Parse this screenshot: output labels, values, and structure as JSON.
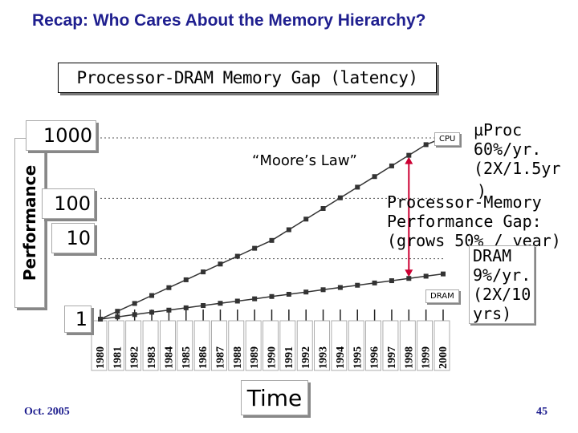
{
  "slide": {
    "title": "Recap: Who Cares About the Memory Hierarchy?",
    "footer_date": "Oct. 2005",
    "page_number": "45"
  },
  "chart_data": {
    "type": "line",
    "title": "Processor-DRAM Memory Gap (latency)",
    "xlabel": "Time",
    "ylabel": "Performance",
    "y_scale": "log",
    "ylim": [
      1,
      1000
    ],
    "y_ticks": [
      "1000",
      "100",
      "10",
      "1"
    ],
    "y_tick_values": [
      1000,
      100,
      10,
      1
    ],
    "categories": [
      "1980",
      "1981",
      "1982",
      "1983",
      "1984",
      "1985",
      "1986",
      "1987",
      "1988",
      "1989",
      "1990",
      "1991",
      "1992",
      "1993",
      "1994",
      "1995",
      "1996",
      "1997",
      "1998",
      "1999",
      "2000"
    ],
    "series": [
      {
        "name": "CPU",
        "color": "#333333",
        "values": [
          1,
          1.35,
          1.82,
          2.46,
          3.32,
          4.48,
          6.05,
          8.17,
          11.0,
          14.9,
          20.1,
          30.2,
          45.3,
          67.9,
          102,
          153,
          229,
          344,
          516,
          774,
          1000
        ]
      },
      {
        "name": "DRAM",
        "color": "#333333",
        "values": [
          1,
          1.09,
          1.19,
          1.3,
          1.41,
          1.54,
          1.68,
          1.83,
          1.99,
          2.17,
          2.37,
          2.58,
          2.81,
          3.07,
          3.34,
          3.64,
          3.97,
          4.33,
          4.72,
          5.14,
          5.6
        ]
      }
    ],
    "annotations": {
      "moore": "“Moore’s Law”",
      "uproc": [
        "µProc",
        "60%/yr.",
        "(2X/1.5yr",
        ")"
      ],
      "gap": [
        "Processor-Memory",
        "Performance Gap:",
        "(grows 50% / year)"
      ],
      "dram": [
        "DRAM",
        "9%/yr.",
        "(2X/10",
        "yrs)"
      ]
    },
    "gap_arrow_year": "1998",
    "grid": "dotted horizontal",
    "accent_color": "#cc0033"
  }
}
